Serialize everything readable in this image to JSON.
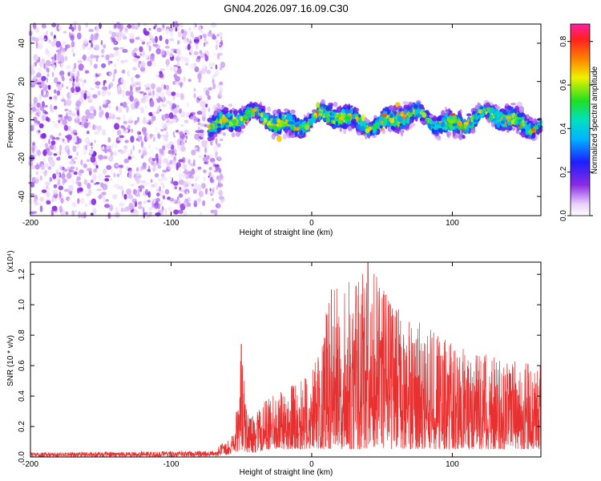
{
  "title": "GN04.2026.097.16.09.C30",
  "chart_data": [
    {
      "type": "heatmap",
      "xlabel": "Height of straight line (km)",
      "ylabel": "Frequency (Hz)",
      "xlim": [
        -200,
        163
      ],
      "ylim": [
        -50,
        50
      ],
      "x_ticks": [
        -200,
        -100,
        0,
        100
      ],
      "x_tick_labels": [
        "-200",
        "-100",
        "0",
        "100"
      ],
      "y_ticks": [
        -40,
        -20,
        0,
        20,
        40
      ],
      "y_tick_labels": [
        "-40",
        "-20",
        "0",
        "20",
        "40"
      ],
      "colorbar": {
        "label": "Normalized spectral amplitude",
        "range": [
          0,
          0.88
        ],
        "ticks": [
          0.0,
          0.2,
          0.4,
          0.6,
          0.8
        ],
        "tick_labels": [
          "0.0",
          "0.2",
          "0.4",
          "0.6",
          "0.8"
        ],
        "colormap": "rainbow: white-purple-blue-cyan-green-yellow-red-magenta"
      },
      "regions": [
        {
          "x_range": [
            -200,
            -63
          ],
          "y_range": [
            -50,
            50
          ],
          "amplitude_range": [
            0.02,
            0.1
          ],
          "pattern": "broadband noise"
        },
        {
          "x_range": [
            -73,
            163
          ],
          "y_center": 0,
          "y_halfwidth": 8,
          "amplitude_range": [
            0.05,
            0.88
          ],
          "pattern": "signal band near 0 Hz"
        }
      ]
    },
    {
      "type": "line",
      "xlabel": "Height of straight line (km)",
      "ylabel": "SNR (10 * v/v)",
      "y_multiplier_label": "(x10⁴)",
      "xlim": [
        -200,
        163
      ],
      "ylim": [
        0,
        1.28
      ],
      "x_ticks": [
        -200,
        -100,
        0,
        100
      ],
      "x_tick_labels": [
        "-200",
        "-100",
        "0",
        "100"
      ],
      "y_ticks": [
        0.0,
        0.2,
        0.4,
        0.6,
        0.8,
        1.0,
        1.2
      ],
      "y_tick_labels": [
        "0.0",
        "0.2",
        "0.4",
        "0.6",
        "0.8",
        "1.0",
        "1.2"
      ],
      "series": [
        {
          "color": "#e83030",
          "envelope": [
            {
              "x": -200,
              "low": 0.0,
              "high": 0.03
            },
            {
              "x": -70,
              "low": 0.0,
              "high": 0.04
            },
            {
              "x": -55,
              "low": 0.02,
              "high": 0.15
            },
            {
              "x": -50,
              "low": 0.05,
              "high": 0.74
            },
            {
              "x": -45,
              "low": 0.02,
              "high": 0.25
            },
            {
              "x": -30,
              "low": 0.05,
              "high": 0.4
            },
            {
              "x": 0,
              "low": 0.05,
              "high": 0.55
            },
            {
              "x": 14,
              "low": 0.05,
              "high": 1.1
            },
            {
              "x": 40,
              "low": 0.05,
              "high": 1.28
            },
            {
              "x": 65,
              "low": 0.05,
              "high": 0.95
            },
            {
              "x": 100,
              "low": 0.05,
              "high": 0.75
            },
            {
              "x": 163,
              "low": 0.05,
              "high": 0.6
            }
          ]
        }
      ]
    }
  ]
}
